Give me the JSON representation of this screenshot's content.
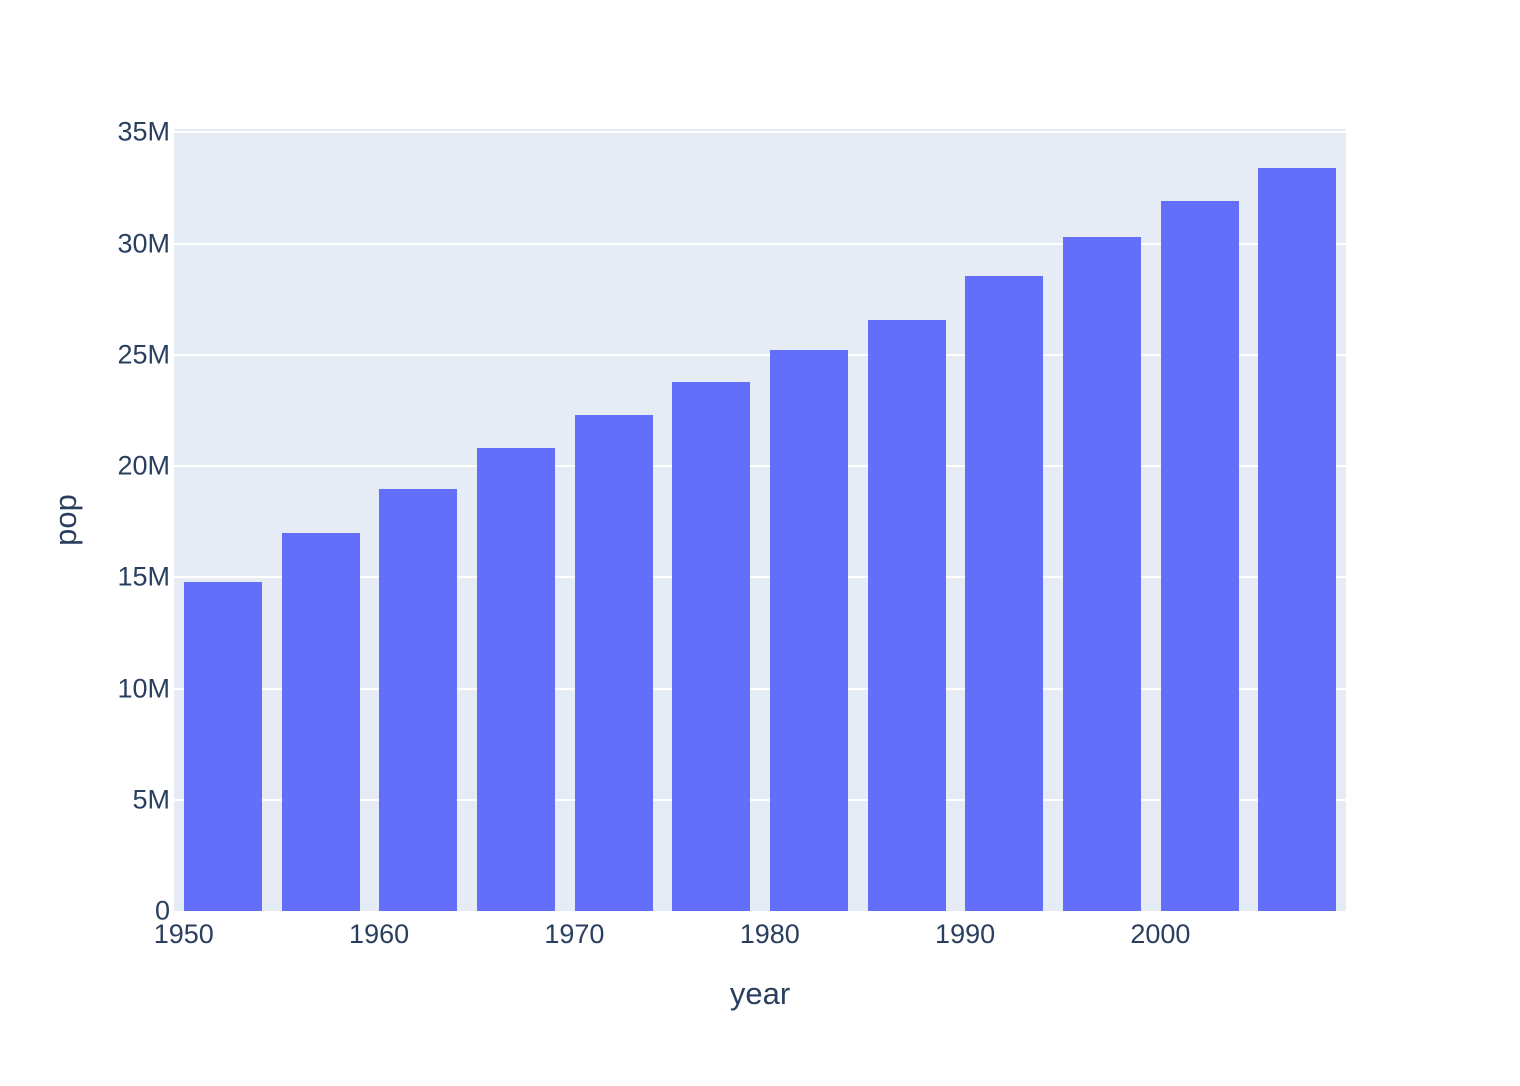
{
  "chart_data": {
    "type": "bar",
    "title": "",
    "xlabel": "year",
    "ylabel": "pop",
    "x": [
      1952,
      1957,
      1962,
      1967,
      1972,
      1977,
      1982,
      1987,
      1992,
      1997,
      2002,
      2007
    ],
    "values": [
      14785584,
      17010154,
      18985849,
      20819767,
      22284500,
      23796400,
      25201900,
      26549700,
      28523502,
      30305843,
      31902268,
      33390141
    ],
    "series_name": "pop",
    "xlim": [
      1949.5,
      2009.5
    ],
    "ylim": [
      0,
      35147000
    ],
    "yticks": [
      {
        "value": 0,
        "label": "0"
      },
      {
        "value": 5000000,
        "label": "5M"
      },
      {
        "value": 10000000,
        "label": "10M"
      },
      {
        "value": 15000000,
        "label": "15M"
      },
      {
        "value": 20000000,
        "label": "20M"
      },
      {
        "value": 25000000,
        "label": "25M"
      },
      {
        "value": 30000000,
        "label": "30M"
      },
      {
        "value": 35000000,
        "label": "35M"
      }
    ],
    "xticks": [
      {
        "value": 1950,
        "label": "1950"
      },
      {
        "value": 1960,
        "label": "1960"
      },
      {
        "value": 1970,
        "label": "1970"
      },
      {
        "value": 1980,
        "label": "1980"
      },
      {
        "value": 1990,
        "label": "1990"
      },
      {
        "value": 2000,
        "label": "2000"
      }
    ],
    "grid": true,
    "legend": false,
    "colors": {
      "bar": "#636EFA",
      "plot_background": "#E5ECF6",
      "gridline": "#FFFFFF",
      "text": "#2A3F5F",
      "page_background": "#FFFFFF"
    }
  }
}
